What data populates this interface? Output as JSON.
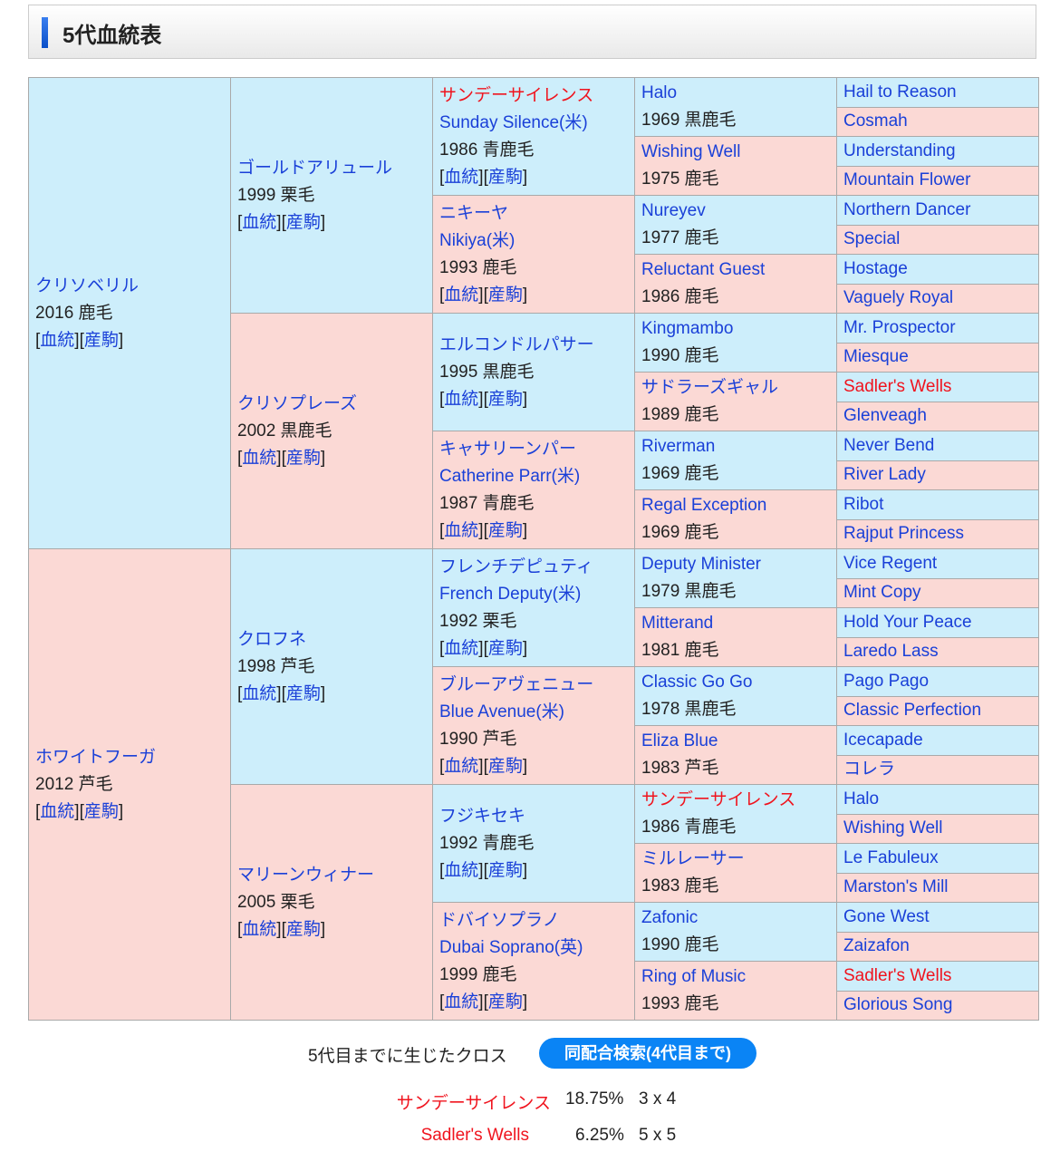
{
  "header": {
    "title": "5代血統表"
  },
  "link_labels": {
    "pedigree": "血統",
    "progeny": "産駒"
  },
  "gen1": [
    {
      "ja": "クリソベリル",
      "info": "2016 鹿毛",
      "sex": "m"
    },
    {
      "ja": "ホワイトフーガ",
      "info": "2012 芦毛",
      "sex": "f"
    }
  ],
  "gen2": [
    {
      "ja": "ゴールドアリュール",
      "info": "1999 栗毛",
      "sex": "m"
    },
    {
      "ja": "クリソプレーズ",
      "info": "2002 黒鹿毛",
      "sex": "f"
    },
    {
      "ja": "クロフネ",
      "info": "1998 芦毛",
      "sex": "m"
    },
    {
      "ja": "マリーンウィナー",
      "info": "2005 栗毛",
      "sex": "f"
    }
  ],
  "gen3": [
    {
      "ja": "サンデーサイレンス",
      "en": "Sunday Silence(米)",
      "info": "1986 青鹿毛",
      "sex": "m",
      "cross": true
    },
    {
      "ja": "ニキーヤ",
      "en": "Nikiya(米)",
      "info": "1993 鹿毛",
      "sex": "f"
    },
    {
      "ja": "エルコンドルパサー",
      "info": "1995 黒鹿毛",
      "sex": "m"
    },
    {
      "ja": "キャサリーンパー",
      "en": "Catherine Parr(米)",
      "info": "1987 青鹿毛",
      "sex": "f"
    },
    {
      "ja": "フレンチデピュティ",
      "en": "French Deputy(米)",
      "info": "1992 栗毛",
      "sex": "m"
    },
    {
      "ja": "ブルーアヴェニュー",
      "en": "Blue Avenue(米)",
      "info": "1990 芦毛",
      "sex": "f"
    },
    {
      "ja": "フジキセキ",
      "info": "1992 青鹿毛",
      "sex": "m"
    },
    {
      "ja": "ドバイソプラノ",
      "en": "Dubai Soprano(英)",
      "info": "1999 鹿毛",
      "sex": "f"
    }
  ],
  "gen4": [
    {
      "ja": "Halo",
      "info": "1969 黒鹿毛",
      "sex": "m"
    },
    {
      "ja": "Wishing Well",
      "info": "1975 鹿毛",
      "sex": "f"
    },
    {
      "ja": "Nureyev",
      "info": "1977 鹿毛",
      "sex": "m"
    },
    {
      "ja": "Reluctant Guest",
      "info": "1986 鹿毛",
      "sex": "f"
    },
    {
      "ja": "Kingmambo",
      "info": "1990 鹿毛",
      "sex": "m"
    },
    {
      "ja": "サドラーズギャル",
      "info": "1989 鹿毛",
      "sex": "f"
    },
    {
      "ja": "Riverman",
      "info": "1969 鹿毛",
      "sex": "m"
    },
    {
      "ja": "Regal Exception",
      "info": "1969 鹿毛",
      "sex": "f"
    },
    {
      "ja": "Deputy Minister",
      "info": "1979 黒鹿毛",
      "sex": "m"
    },
    {
      "ja": "Mitterand",
      "info": "1981 鹿毛",
      "sex": "f"
    },
    {
      "ja": "Classic Go Go",
      "info": "1978 黒鹿毛",
      "sex": "m"
    },
    {
      "ja": "Eliza Blue",
      "info": "1983 芦毛",
      "sex": "f"
    },
    {
      "ja": "サンデーサイレンス",
      "info": "1986 青鹿毛",
      "sex": "m",
      "cross": true
    },
    {
      "ja": "ミルレーサー",
      "info": "1983 鹿毛",
      "sex": "f"
    },
    {
      "ja": "Zafonic",
      "info": "1990 鹿毛",
      "sex": "m"
    },
    {
      "ja": "Ring of Music",
      "info": "1993 鹿毛",
      "sex": "f"
    }
  ],
  "gen5": [
    {
      "ja": "Hail to Reason",
      "sex": "m"
    },
    {
      "ja": "Cosmah",
      "sex": "f"
    },
    {
      "ja": "Understanding",
      "sex": "m"
    },
    {
      "ja": "Mountain Flower",
      "sex": "f"
    },
    {
      "ja": "Northern Dancer",
      "sex": "m"
    },
    {
      "ja": "Special",
      "sex": "f"
    },
    {
      "ja": "Hostage",
      "sex": "m"
    },
    {
      "ja": "Vaguely Royal",
      "sex": "f"
    },
    {
      "ja": "Mr. Prospector",
      "sex": "m"
    },
    {
      "ja": "Miesque",
      "sex": "f"
    },
    {
      "ja": "Sadler's Wells",
      "sex": "m",
      "cross": true
    },
    {
      "ja": "Glenveagh",
      "sex": "f"
    },
    {
      "ja": "Never Bend",
      "sex": "m"
    },
    {
      "ja": "River Lady",
      "sex": "f"
    },
    {
      "ja": "Ribot",
      "sex": "m"
    },
    {
      "ja": "Rajput Princess",
      "sex": "f"
    },
    {
      "ja": "Vice Regent",
      "sex": "m"
    },
    {
      "ja": "Mint Copy",
      "sex": "f"
    },
    {
      "ja": "Hold Your Peace",
      "sex": "m"
    },
    {
      "ja": "Laredo Lass",
      "sex": "f"
    },
    {
      "ja": "Pago Pago",
      "sex": "m"
    },
    {
      "ja": "Classic Perfection",
      "sex": "f"
    },
    {
      "ja": "Icecapade",
      "sex": "m"
    },
    {
      "ja": "コレラ",
      "sex": "f"
    },
    {
      "ja": "Halo",
      "sex": "m"
    },
    {
      "ja": "Wishing Well",
      "sex": "f"
    },
    {
      "ja": "Le Fabuleux",
      "sex": "m"
    },
    {
      "ja": "Marston's Mill",
      "sex": "f"
    },
    {
      "ja": "Gone West",
      "sex": "m"
    },
    {
      "ja": "Zaizafon",
      "sex": "f"
    },
    {
      "ja": "Sadler's Wells",
      "sex": "m",
      "cross": true
    },
    {
      "ja": "Glorious Song",
      "sex": "f"
    }
  ],
  "cross": {
    "title": "5代目までに生じたクロス",
    "search_button": "同配合検索(4代目まで)",
    "rows": [
      {
        "name": "サンデーサイレンス",
        "pct": "18.75%",
        "gen": "3 x 4"
      },
      {
        "name": "Sadler's Wells",
        "pct": "6.25%",
        "gen": "5 x 5"
      }
    ]
  },
  "colors": {
    "male_bg": "#cdeefb",
    "female_bg": "#fbd9d5",
    "link": "#1a40d8",
    "cross": "#f0141e",
    "button": "#0a84f5"
  }
}
